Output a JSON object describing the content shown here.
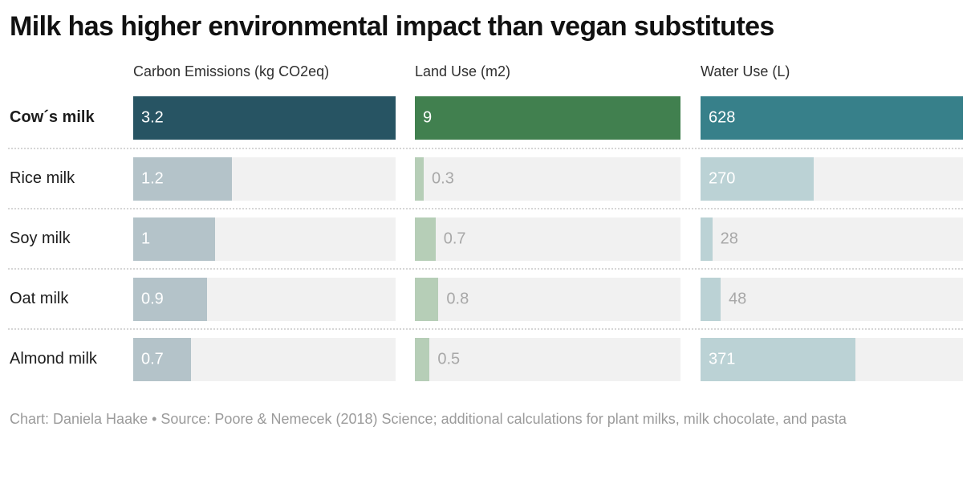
{
  "title": "Milk has higher environmental impact than vegan substitutes",
  "footer": "Chart: Daniela Haake • Source: Poore & Nemecek (2018) Science; additional calculations for plant milks, milk chocolate, and pasta",
  "chart_data": {
    "type": "bar",
    "orientation": "horizontal",
    "categories": [
      "Cow´s milk",
      "Rice milk",
      "Soy milk",
      "Oat milk",
      "Almond milk"
    ],
    "highlight_category": "Cow´s milk",
    "series": [
      {
        "name": "Carbon Emissions (kg CO2eq)",
        "values": [
          3.2,
          1.2,
          1,
          0.9,
          0.7
        ],
        "labels": [
          "3.2",
          "1.2",
          "1",
          "0.9",
          "0.7"
        ],
        "axis_max": 3.2,
        "color_highlight": "#275463",
        "color_muted": "#b4c3c9"
      },
      {
        "name": "Land Use (m2)",
        "values": [
          9,
          0.3,
          0.7,
          0.8,
          0.5
        ],
        "labels": [
          "9",
          "0.3",
          "0.7",
          "0.8",
          "0.5"
        ],
        "axis_max": 9,
        "color_highlight": "#41804f",
        "color_muted": "#b6ceb7"
      },
      {
        "name": "Water Use (L)",
        "values": [
          628,
          270,
          28,
          48,
          371
        ],
        "labels": [
          "628",
          "270",
          "28",
          "48",
          "371"
        ],
        "axis_max": 628,
        "color_highlight": "#37808a",
        "color_muted": "#bbd2d5"
      }
    ],
    "track_color": "#f1f1f1",
    "inside_label_color": "#ffffff",
    "outside_label_color": "#a8a8a8",
    "legend_position": "none",
    "grid": false
  }
}
